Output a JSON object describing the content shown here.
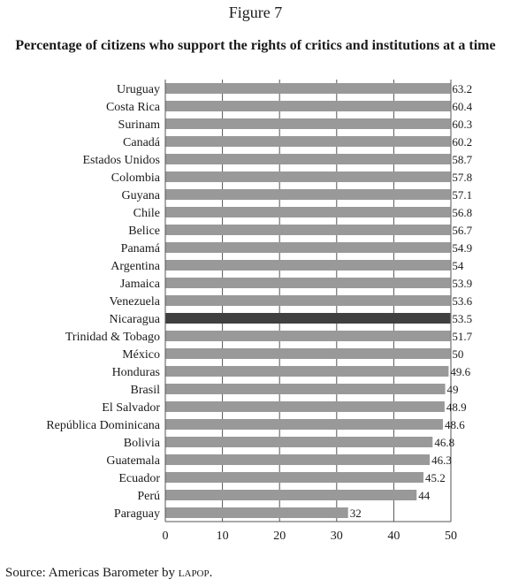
{
  "figure_label": "Figure 7",
  "source": {
    "prefix": "Source: Americas Barometer by ",
    "org": "lapop",
    "suffix": "."
  },
  "colors": {
    "bar": "#999999",
    "highlight": "#404040",
    "grid": "#555555",
    "text": "#1a1a1a"
  },
  "chart_data": {
    "type": "bar",
    "orientation": "horizontal",
    "title": "Percentage of citizens who support the rights of critics and institutions at a time",
    "xlabel": "",
    "ylabel": "",
    "xlim": [
      0,
      50
    ],
    "xticks": [
      "0",
      "10",
      "20",
      "30",
      "40",
      "50"
    ],
    "grid": "vertical",
    "legend": "none",
    "highlight": "Nicaragua",
    "categories": [
      "Uruguay",
      "Costa Rica",
      "Surinam",
      "Canadá",
      "Estados Unidos",
      "Colombia",
      "Guyana",
      "Chile",
      "Belice",
      "Panamá",
      "Argentina",
      "Jamaica",
      "Venezuela",
      "Nicaragua",
      "Trinidad & Tobago",
      "México",
      "Honduras",
      "Brasil",
      "El Salvador",
      "República Dominicana",
      "Bolivia",
      "Guatemala",
      "Ecuador",
      "Perú",
      "Paraguay"
    ],
    "values": [
      63.2,
      60.4,
      60.3,
      60.2,
      58.7,
      57.8,
      57.1,
      56.8,
      56.7,
      54.9,
      54,
      53.9,
      53.6,
      53.5,
      51.7,
      50,
      49.6,
      49,
      48.9,
      48.6,
      46.8,
      46.3,
      45.2,
      44,
      32
    ],
    "data_labels": [
      "63.2",
      "60.4",
      "60.3",
      "60.2",
      "58.7",
      "57.8",
      "57.1",
      "56.8",
      "56.7",
      "54.9",
      "54",
      "53.9",
      "53.6",
      "53.5",
      "51.7",
      "50",
      "49.6",
      "49",
      "48.9",
      "48.6",
      "46.8",
      "46.3",
      "45.2",
      "44",
      "32"
    ]
  }
}
